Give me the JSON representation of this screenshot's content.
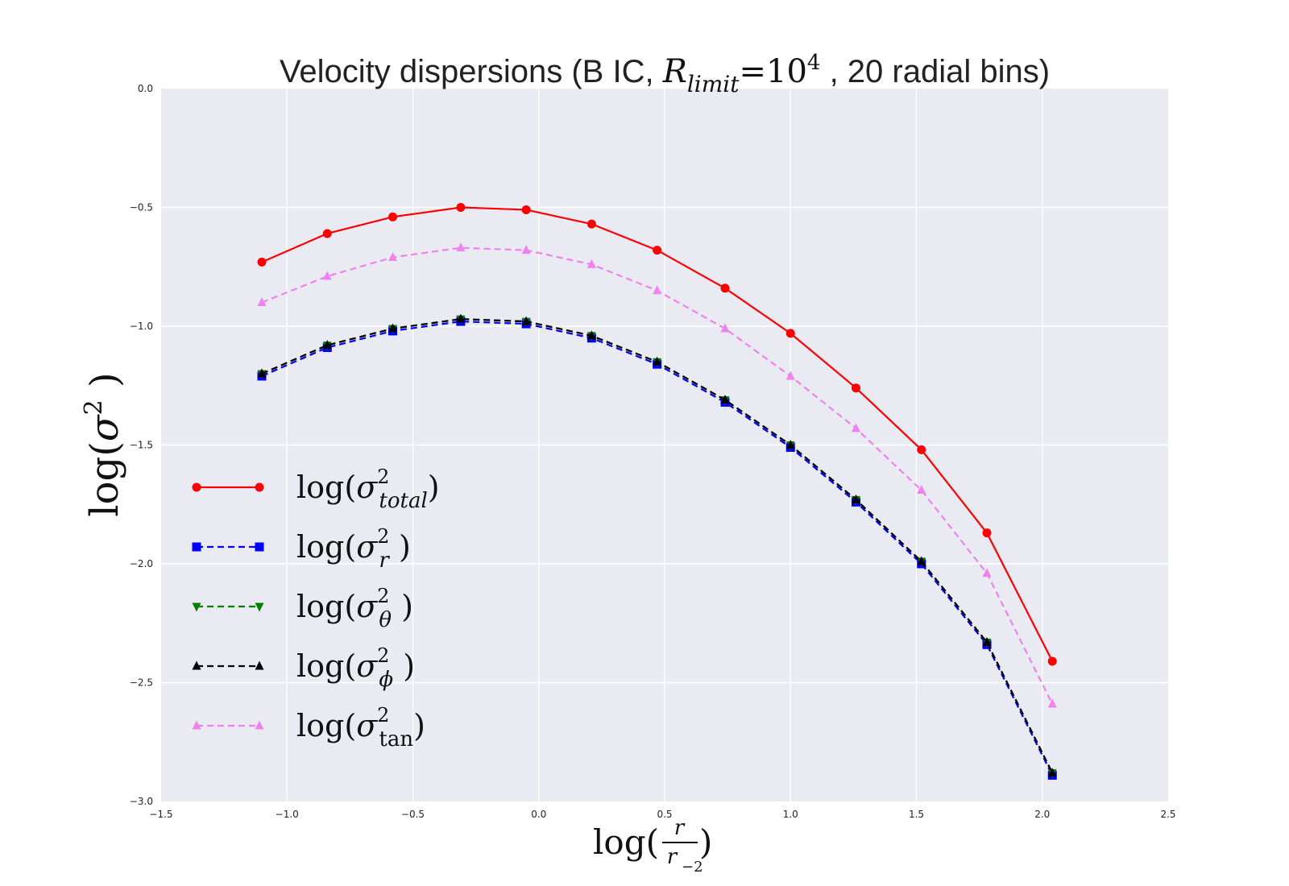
{
  "chart_data": {
    "type": "line",
    "title": {
      "prefix": "Velocity dispersions (B IC, ",
      "math_symbol": "R",
      "math_subscript": "limit",
      "math_equals": "=10",
      "math_exponent": "4",
      "suffix": " , 20 radial bins)"
    },
    "xlabel": {
      "prefix": "log(",
      "numerator": "r",
      "denominator": "r",
      "denominator_subscript": "−2",
      "suffix": ")"
    },
    "ylabel": {
      "prefix": "log(",
      "symbol": "σ",
      "exponent": "2",
      "suffix": " )"
    },
    "xlim": [
      -1.5,
      2.5
    ],
    "ylim": [
      -3.0,
      0.0
    ],
    "xticks": [
      -1.5,
      -1.0,
      -0.5,
      0.0,
      0.5,
      1.0,
      1.5,
      2.0,
      2.5
    ],
    "xtick_labels": [
      "−1.5",
      "−1.0",
      "−0.5",
      "0.0",
      "0.5",
      "1.0",
      "1.5",
      "2.0",
      "2.5"
    ],
    "yticks": [
      0.0,
      -0.5,
      -1.0,
      -1.5,
      -2.0,
      -2.5,
      -3.0
    ],
    "ytick_labels": [
      "0.0",
      "−0.5",
      "−1.0",
      "−1.5",
      "−2.0",
      "−2.5",
      "−3.0"
    ],
    "grid": true,
    "legend_position": "lower-left",
    "background_color": "#eaeaf2",
    "x": [
      -1.1,
      -0.84,
      -0.58,
      -0.31,
      -0.05,
      0.21,
      0.47,
      0.74,
      1.0,
      1.26,
      1.52,
      1.78,
      2.04
    ],
    "series": [
      {
        "key": "total",
        "legend": {
          "symbol": "σ",
          "exponent": "2",
          "subscript": "total"
        },
        "color": "#ff0000",
        "dash": "solid",
        "marker": "circle",
        "values": [
          -0.73,
          -0.61,
          -0.54,
          -0.5,
          -0.51,
          -0.57,
          -0.68,
          -0.84,
          -1.03,
          -1.26,
          -1.52,
          -1.87,
          -2.41
        ]
      },
      {
        "key": "r",
        "legend": {
          "symbol": "σ",
          "exponent": "2",
          "subscript": "r"
        },
        "color": "#0000ff",
        "dash": "dashed",
        "marker": "square",
        "values": [
          -1.21,
          -1.09,
          -1.02,
          -0.98,
          -0.99,
          -1.05,
          -1.16,
          -1.32,
          -1.51,
          -1.74,
          -2.0,
          -2.34,
          -2.89
        ]
      },
      {
        "key": "theta",
        "legend": {
          "symbol": "σ",
          "exponent": "2",
          "subscript": "θ"
        },
        "color": "#007f00",
        "dash": "dashed",
        "marker": "triangle-down",
        "values": [
          -1.2,
          -1.08,
          -1.01,
          -0.97,
          -0.98,
          -1.04,
          -1.15,
          -1.31,
          -1.5,
          -1.73,
          -1.99,
          -2.33,
          -2.88
        ]
      },
      {
        "key": "phi",
        "legend": {
          "symbol": "σ",
          "exponent": "2",
          "subscript": "ϕ"
        },
        "color": "#000000",
        "dash": "dashed",
        "marker": "triangle-up",
        "values": [
          -1.2,
          -1.08,
          -1.01,
          -0.97,
          -0.98,
          -1.04,
          -1.15,
          -1.31,
          -1.5,
          -1.73,
          -1.99,
          -2.33,
          -2.88
        ]
      },
      {
        "key": "tan",
        "legend": {
          "symbol": "σ",
          "exponent": "2",
          "subscript": "tan"
        },
        "color": "#ee82ee",
        "dash": "dashed",
        "marker": "triangle-up",
        "values": [
          -0.9,
          -0.79,
          -0.71,
          -0.67,
          -0.68,
          -0.74,
          -0.85,
          -1.01,
          -1.21,
          -1.43,
          -1.69,
          -2.04,
          -2.59
        ]
      }
    ]
  }
}
